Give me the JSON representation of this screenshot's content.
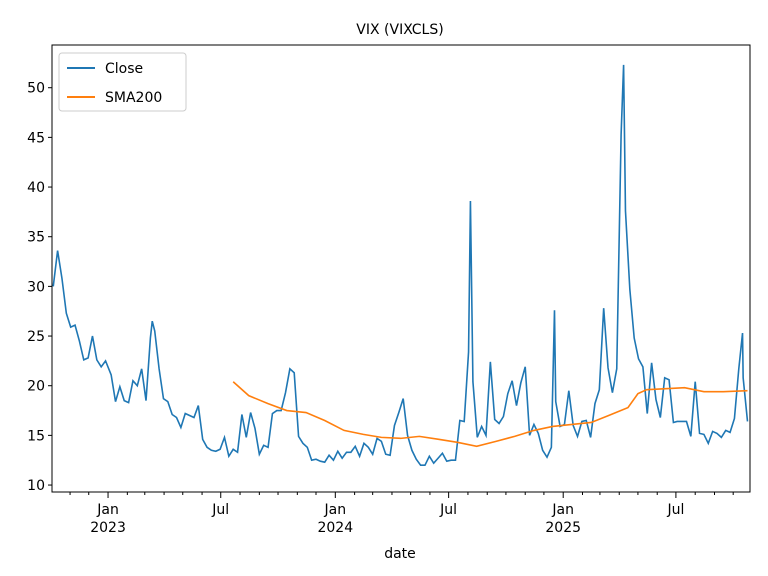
{
  "chart_data": {
    "type": "line",
    "title": "VIX (VIXCLS)",
    "x_label": "date",
    "xlim": [
      "2022-10-03",
      "2025-10-28"
    ],
    "ylim": [
      9.3,
      54.3
    ],
    "yticks": [
      10,
      15,
      20,
      25,
      30,
      35,
      40,
      45,
      50
    ],
    "xticks": [
      {
        "value": "2023-01-01",
        "label": "Jan",
        "year": "2023"
      },
      {
        "value": "2023-07-01",
        "label": "Jul"
      },
      {
        "value": "2024-01-01",
        "label": "Jan",
        "year": "2024"
      },
      {
        "value": "2024-07-01",
        "label": "Jul"
      },
      {
        "value": "2025-01-01",
        "label": "Jan",
        "year": "2025"
      },
      {
        "value": "2025-07-01",
        "label": "Jul"
      }
    ],
    "xminorticks": [
      "2022-11-01",
      "2022-12-01",
      "2023-02-01",
      "2023-03-01",
      "2023-04-01",
      "2023-05-01",
      "2023-06-01",
      "2023-08-01",
      "2023-09-01",
      "2023-10-01",
      "2023-11-01",
      "2023-12-01",
      "2024-02-01",
      "2024-03-01",
      "2024-04-01",
      "2024-05-01",
      "2024-06-01",
      "2024-08-01",
      "2024-09-01",
      "2024-10-01",
      "2024-11-01",
      "2024-12-01",
      "2025-02-01",
      "2025-03-01",
      "2025-04-01",
      "2025-05-01",
      "2025-06-01",
      "2025-08-01",
      "2025-09-01",
      "2025-10-01"
    ],
    "legend": "upper left",
    "series": [
      {
        "name": "Close",
        "color": "#1f77b4",
        "x": [
          "2022-10-05",
          "2022-10-12",
          "2022-10-19",
          "2022-10-26",
          "2022-11-02",
          "2022-11-09",
          "2022-11-16",
          "2022-11-23",
          "2022-11-30",
          "2022-12-07",
          "2022-12-14",
          "2022-12-21",
          "2022-12-28",
          "2023-01-06",
          "2023-01-13",
          "2023-01-20",
          "2023-01-27",
          "2023-02-03",
          "2023-02-10",
          "2023-02-17",
          "2023-02-24",
          "2023-03-03",
          "2023-03-10",
          "2023-03-13",
          "2023-03-17",
          "2023-03-24",
          "2023-03-31",
          "2023-04-07",
          "2023-04-14",
          "2023-04-21",
          "2023-04-28",
          "2023-05-05",
          "2023-05-12",
          "2023-05-19",
          "2023-05-26",
          "2023-06-02",
          "2023-06-09",
          "2023-06-16",
          "2023-06-23",
          "2023-06-30",
          "2023-07-07",
          "2023-07-14",
          "2023-07-21",
          "2023-07-28",
          "2023-08-04",
          "2023-08-11",
          "2023-08-18",
          "2023-08-25",
          "2023-09-01",
          "2023-09-08",
          "2023-09-15",
          "2023-09-22",
          "2023-09-29",
          "2023-10-06",
          "2023-10-13",
          "2023-10-20",
          "2023-10-27",
          "2023-11-03",
          "2023-11-10",
          "2023-11-17",
          "2023-11-24",
          "2023-12-01",
          "2023-12-08",
          "2023-12-15",
          "2023-12-22",
          "2023-12-29",
          "2024-01-05",
          "2024-01-12",
          "2024-01-19",
          "2024-01-26",
          "2024-02-02",
          "2024-02-09",
          "2024-02-16",
          "2024-02-23",
          "2024-03-01",
          "2024-03-08",
          "2024-03-15",
          "2024-03-22",
          "2024-03-29",
          "2024-04-05",
          "2024-04-12",
          "2024-04-19",
          "2024-04-26",
          "2024-05-03",
          "2024-05-10",
          "2024-05-17",
          "2024-05-24",
          "2024-05-31",
          "2024-06-07",
          "2024-06-14",
          "2024-06-21",
          "2024-06-28",
          "2024-07-05",
          "2024-07-12",
          "2024-07-19",
          "2024-07-26",
          "2024-08-02",
          "2024-08-05",
          "2024-08-09",
          "2024-08-16",
          "2024-08-23",
          "2024-08-30",
          "2024-09-06",
          "2024-09-13",
          "2024-09-20",
          "2024-09-27",
          "2024-10-04",
          "2024-10-11",
          "2024-10-18",
          "2024-10-25",
          "2024-11-01",
          "2024-11-08",
          "2024-11-15",
          "2024-11-22",
          "2024-11-29",
          "2024-12-06",
          "2024-12-13",
          "2024-12-18",
          "2024-12-20",
          "2024-12-27",
          "2025-01-03",
          "2025-01-10",
          "2025-01-17",
          "2025-01-24",
          "2025-01-31",
          "2025-02-07",
          "2025-02-14",
          "2025-02-21",
          "2025-02-28",
          "2025-03-07",
          "2025-03-14",
          "2025-03-21",
          "2025-03-28",
          "2025-04-04",
          "2025-04-08",
          "2025-04-11",
          "2025-04-18",
          "2025-04-25",
          "2025-05-02",
          "2025-05-09",
          "2025-05-16",
          "2025-05-23",
          "2025-05-30",
          "2025-06-06",
          "2025-06-13",
          "2025-06-20",
          "2025-06-27",
          "2025-07-03",
          "2025-07-11",
          "2025-07-18",
          "2025-07-25",
          "2025-08-01",
          "2025-08-08",
          "2025-08-15",
          "2025-08-22",
          "2025-08-29",
          "2025-09-05",
          "2025-09-12",
          "2025-09-19",
          "2025-09-26",
          "2025-10-03",
          "2025-10-10",
          "2025-10-16",
          "2025-10-17",
          "2025-10-24"
        ],
        "values": [
          30.0,
          33.6,
          30.8,
          27.3,
          25.9,
          26.1,
          24.5,
          22.6,
          22.8,
          25.0,
          22.6,
          21.9,
          22.5,
          21.1,
          18.4,
          19.9,
          18.5,
          18.3,
          20.5,
          20.0,
          21.7,
          18.5,
          24.8,
          26.5,
          25.5,
          21.7,
          18.7,
          18.4,
          17.1,
          16.8,
          15.8,
          17.2,
          17.0,
          16.8,
          18.0,
          14.6,
          13.8,
          13.5,
          13.4,
          13.6,
          14.8,
          12.9,
          13.6,
          13.3,
          17.1,
          14.8,
          17.3,
          15.7,
          13.1,
          14.0,
          13.8,
          17.2,
          17.5,
          17.5,
          19.3,
          21.7,
          21.3,
          14.9,
          14.2,
          13.8,
          12.5,
          12.6,
          12.4,
          12.3,
          13.0,
          12.5,
          13.4,
          12.7,
          13.3,
          13.3,
          13.9,
          12.9,
          14.2,
          13.8,
          13.1,
          14.7,
          14.4,
          13.1,
          13.0,
          16.0,
          17.3,
          18.7,
          15.0,
          13.5,
          12.6,
          12.0,
          12.0,
          12.9,
          12.2,
          12.7,
          13.2,
          12.4,
          12.5,
          12.5,
          16.5,
          16.4,
          23.4,
          38.6,
          20.4,
          14.8,
          15.9,
          15.0,
          22.4,
          16.6,
          16.2,
          16.9,
          19.2,
          20.5,
          18.0,
          20.3,
          21.9,
          15.0,
          16.1,
          15.2,
          13.5,
          12.8,
          13.8,
          27.6,
          18.4,
          15.9,
          16.1,
          19.5,
          16.0,
          14.9,
          16.4,
          16.5,
          14.8,
          18.2,
          19.6,
          27.8,
          21.8,
          19.3,
          21.7,
          45.3,
          52.3,
          37.6,
          29.7,
          24.8,
          22.7,
          21.9,
          17.2,
          22.3,
          18.6,
          16.8,
          20.8,
          20.6,
          16.3,
          16.4,
          16.4,
          16.4,
          14.9,
          20.4,
          15.2,
          15.1,
          14.2,
          15.4,
          15.2,
          14.8,
          15.5,
          15.3,
          16.7,
          21.7,
          25.3,
          20.8,
          16.4
        ]
      },
      {
        "name": "SMA200",
        "color": "#ff7f0e",
        "x": [
          "2023-07-21",
          "2023-08-15",
          "2023-09-15",
          "2023-10-15",
          "2023-11-15",
          "2023-12-15",
          "2024-01-15",
          "2024-02-15",
          "2024-03-15",
          "2024-04-15",
          "2024-05-15",
          "2024-06-15",
          "2024-07-15",
          "2024-08-15",
          "2024-09-15",
          "2024-10-15",
          "2024-11-15",
          "2024-12-15",
          "2025-01-15",
          "2025-02-15",
          "2025-03-15",
          "2025-04-15",
          "2025-05-01",
          "2025-05-15",
          "2025-06-15",
          "2025-07-15",
          "2025-08-15",
          "2025-09-15",
          "2025-10-24"
        ],
        "values": [
          20.4,
          19.0,
          18.2,
          17.5,
          17.3,
          16.5,
          15.5,
          15.1,
          14.8,
          14.7,
          14.9,
          14.6,
          14.3,
          13.9,
          14.4,
          14.9,
          15.5,
          15.9,
          16.1,
          16.3,
          17.0,
          17.8,
          19.2,
          19.6,
          19.7,
          19.8,
          19.4,
          19.4,
          19.5
        ]
      }
    ]
  }
}
